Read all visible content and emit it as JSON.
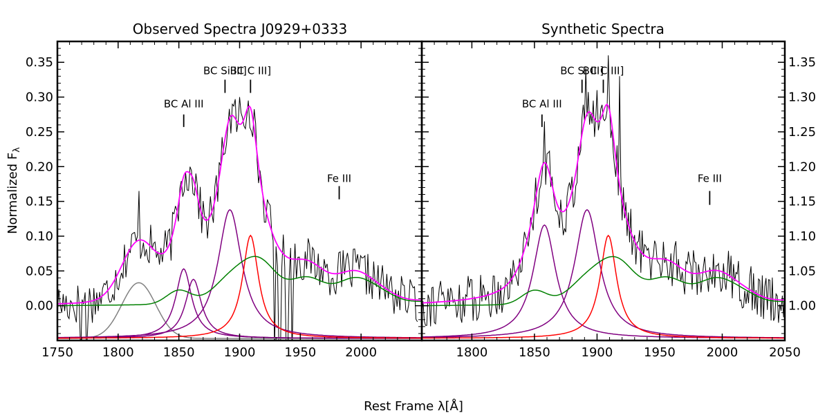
{
  "chart_data": {
    "type": "line",
    "ylabel_main": "Normalized F",
    "ylabel_sub": "λ",
    "xlabel": "Rest Frame λ[Å]",
    "colors": {
      "observed": "#000000",
      "total_fit": "#ff00ff",
      "bc_component": "#800080",
      "c3_component": "#ff0000",
      "fe3_template": "#008000",
      "extra_gauss": "#808080"
    },
    "panels": [
      {
        "title": "Observed Spectra J0929+0333",
        "xlim": [
          1750,
          2050
        ],
        "ylim": [
          -0.05,
          0.38
        ],
        "xticks": [
          1750,
          1800,
          1850,
          1900,
          1950,
          2000
        ],
        "xtick_labels": [
          "1750",
          "1800",
          "1850",
          "1900",
          "1950",
          "2000"
        ],
        "yticks": [
          0.0,
          0.05,
          0.1,
          0.15,
          0.2,
          0.25,
          0.3,
          0.35
        ],
        "ytick_labels": [
          "0.00",
          "0.05",
          "0.10",
          "0.15",
          "0.20",
          "0.25",
          "0.30",
          "0.35"
        ],
        "annotations": [
          {
            "text": "BC Al III",
            "x": 1854,
            "y_text": 0.285,
            "y_top": 0.275,
            "y_bottom": 0.257
          },
          {
            "text": "BC Si III]",
            "x": 1888,
            "y_text": 0.333,
            "y_top": 0.325,
            "y_bottom": 0.306
          },
          {
            "text": "BC C III]",
            "x": 1909,
            "y_text": 0.333,
            "y_top": 0.325,
            "y_bottom": 0.306
          },
          {
            "text": "Fe III",
            "x": 1982,
            "y_text": 0.178,
            "y_top": 0.172,
            "y_bottom": 0.153
          }
        ],
        "components": [
          {
            "name": "extra-gauss",
            "color": "#808080",
            "type": "gauss",
            "center": 1817,
            "amp": 0.08,
            "width": 14
          },
          {
            "name": "bc-al3-a",
            "color": "#800080",
            "type": "lorentz",
            "center": 1854,
            "amp": 0.1,
            "width": 8
          },
          {
            "name": "bc-al3-b",
            "color": "#800080",
            "type": "lorentz",
            "center": 1862,
            "amp": 0.085,
            "width": 8
          },
          {
            "name": "bc-si3",
            "color": "#800080",
            "type": "lorentz",
            "center": 1892,
            "amp": 0.185,
            "width": 12
          },
          {
            "name": "bc-c3",
            "color": "#ff0000",
            "type": "lorentz",
            "center": 1909,
            "amp": 0.148,
            "width": 8
          }
        ],
        "fe_template": [
          {
            "center": 1850,
            "amp": 0.02,
            "width": 10
          },
          {
            "center": 1893,
            "amp": 0.035,
            "width": 15
          },
          {
            "center": 1917,
            "amp": 0.055,
            "width": 14
          },
          {
            "center": 1955,
            "amp": 0.035,
            "width": 14
          },
          {
            "center": 1996,
            "amp": 0.035,
            "width": 16
          },
          {
            "center": 2020,
            "amp": 0.005,
            "width": 10
          }
        ],
        "fe_offset": 0.003,
        "fe_slope": 2e-05,
        "fit_extra": [
          {
            "center": 1955,
            "amp": 0.012,
            "width": 20
          },
          {
            "center": 1996,
            "amp": 0.004,
            "width": 12
          }
        ],
        "observed": {
          "x_start": 1750,
          "x_end": 2047,
          "step": 1.2,
          "noise_seed": 17,
          "noise_amp": 0.032,
          "deep_dips": [
            {
              "x": 1769,
              "y": -0.07
            },
            {
              "x": 1774,
              "y": -0.07
            },
            {
              "x": 1929,
              "y": -0.07
            },
            {
              "x": 1933,
              "y": -0.07
            },
            {
              "x": 1939,
              "y": -0.07
            },
            {
              "x": 1943,
              "y": -0.07
            }
          ],
          "spikes": [
            {
              "x": 1817,
              "y": 0.165
            },
            {
              "x": 1864,
              "y": 0.19
            },
            {
              "x": 1900,
              "y": 0.3
            },
            {
              "x": 1907,
              "y": 0.295
            },
            {
              "x": 1921,
              "y": 0.12
            }
          ]
        }
      },
      {
        "title": "Synthetic Spectra",
        "xlim": [
          1760,
          2050
        ],
        "ylim": [
          0.95,
          1.38
        ],
        "xticks": [
          1800,
          1850,
          1900,
          1950,
          2000,
          2050
        ],
        "xtick_labels": [
          "1800",
          "1850",
          "1900",
          "1950",
          "2000",
          "2050"
        ],
        "yticks": [
          1.0,
          1.05,
          1.1,
          1.15,
          1.2,
          1.25,
          1.3,
          1.35
        ],
        "ytick_labels": [
          "1.00",
          "1.05",
          "1.10",
          "1.15",
          "1.20",
          "1.25",
          "1.30",
          "1.35"
        ],
        "annotations": [
          {
            "text": "BC Al III",
            "x": 1856,
            "y_text": 1.285,
            "y_top": 1.275,
            "y_bottom": 1.257
          },
          {
            "text": "BC Si III]",
            "x": 1888,
            "y_text": 1.333,
            "y_top": 1.325,
            "y_bottom": 1.306
          },
          {
            "text": "BC C III]",
            "x": 1905,
            "y_text": 1.333,
            "y_top": 1.325,
            "y_bottom": 1.306
          },
          {
            "text": "Fe III",
            "x": 1990,
            "y_text": 1.178,
            "y_top": 1.165,
            "y_bottom": 1.145
          }
        ],
        "components": [
          {
            "name": "bc-al3",
            "color": "#800080",
            "type": "lorentz",
            "center": 1858,
            "amp": 0.163,
            "width": 11
          },
          {
            "name": "bc-si3",
            "color": "#800080",
            "type": "lorentz",
            "center": 1892,
            "amp": 0.185,
            "width": 12
          },
          {
            "name": "bc-c3",
            "color": "#ff0000",
            "type": "lorentz",
            "center": 1909,
            "amp": 0.148,
            "width": 8
          }
        ],
        "fe_template": [
          {
            "center": 1850,
            "amp": 0.02,
            "width": 10
          },
          {
            "center": 1893,
            "amp": 0.035,
            "width": 15
          },
          {
            "center": 1917,
            "amp": 0.055,
            "width": 14
          },
          {
            "center": 1955,
            "amp": 0.035,
            "width": 14
          },
          {
            "center": 1996,
            "amp": 0.035,
            "width": 16
          },
          {
            "center": 2020,
            "amp": 0.005,
            "width": 10
          }
        ],
        "fe_offset": 1.003,
        "fe_slope": 2e-05,
        "fit_extra": [
          {
            "center": 1955,
            "amp": 0.012,
            "width": 20
          },
          {
            "center": 1996,
            "amp": 0.004,
            "width": 12
          }
        ],
        "observed": {
          "x_start": 1760,
          "x_end": 2050,
          "step": 1.0,
          "noise_seed": 91,
          "noise_amp": 0.035,
          "deep_dips": [],
          "spikes": [
            {
              "x": 1858,
              "y": 1.265
            },
            {
              "x": 1891,
              "y": 1.34
            },
            {
              "x": 1900,
              "y": 1.31
            },
            {
              "x": 1909,
              "y": 1.36
            },
            {
              "x": 1918,
              "y": 1.33
            }
          ]
        }
      }
    ]
  }
}
